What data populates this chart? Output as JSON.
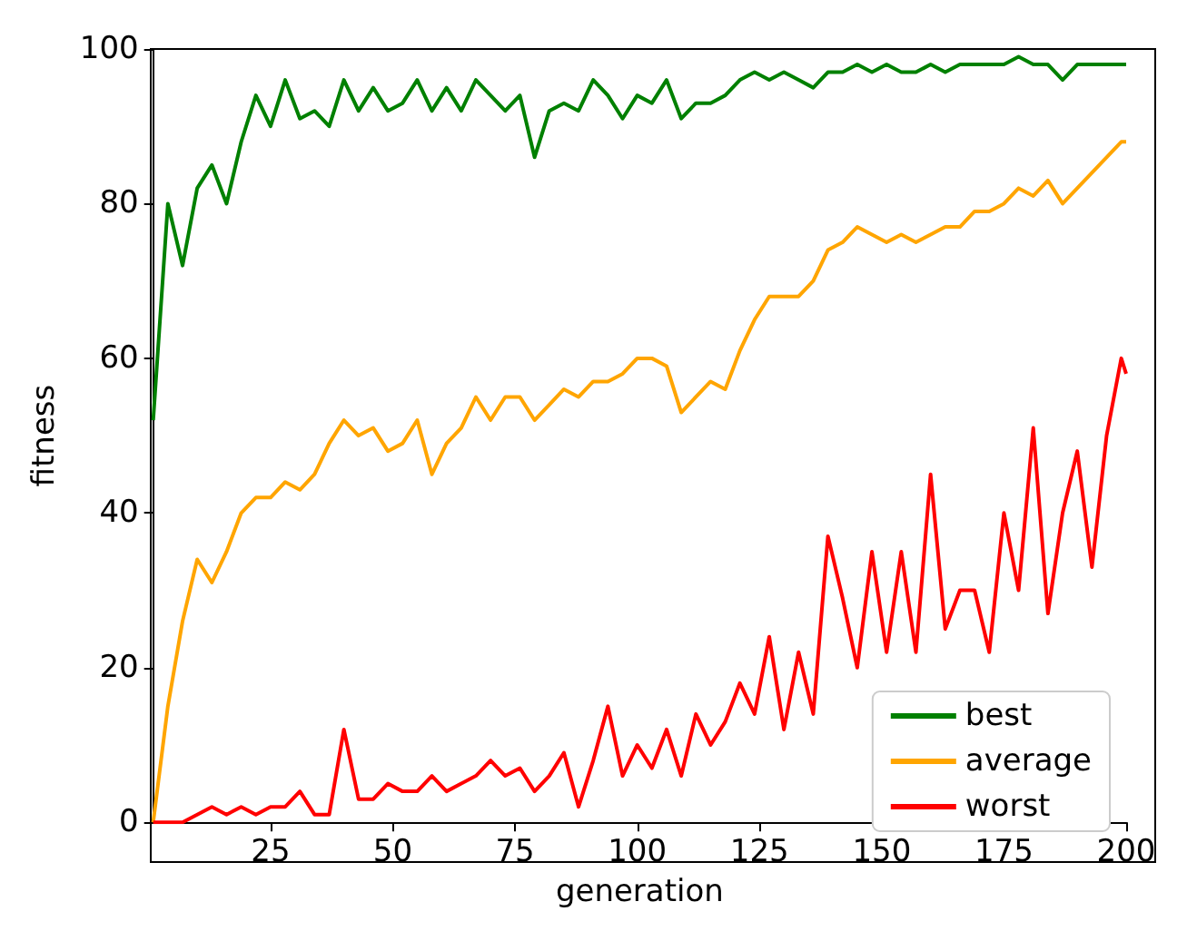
{
  "chart_data": {
    "type": "line",
    "xlabel": "generation",
    "ylabel": "fitness",
    "x": [
      1,
      4,
      7,
      10,
      13,
      16,
      19,
      22,
      25,
      28,
      31,
      34,
      37,
      40,
      43,
      46,
      49,
      52,
      55,
      58,
      61,
      64,
      67,
      70,
      73,
      76,
      79,
      82,
      85,
      88,
      91,
      94,
      97,
      100,
      103,
      106,
      109,
      112,
      115,
      118,
      121,
      124,
      127,
      130,
      133,
      136,
      139,
      142,
      145,
      148,
      151,
      154,
      157,
      160,
      163,
      166,
      169,
      172,
      175,
      178,
      181,
      184,
      187,
      190,
      193,
      196,
      199,
      200
    ],
    "series": [
      {
        "name": "best",
        "color": "#008000",
        "values": [
          52,
          80,
          72,
          82,
          85,
          80,
          88,
          94,
          90,
          96,
          91,
          92,
          90,
          96,
          92,
          95,
          92,
          93,
          96,
          92,
          95,
          92,
          96,
          94,
          92,
          94,
          86,
          92,
          93,
          92,
          96,
          94,
          91,
          94,
          93,
          96,
          91,
          93,
          93,
          94,
          96,
          97,
          96,
          97,
          96,
          95,
          97,
          97,
          98,
          97,
          98,
          97,
          97,
          98,
          97,
          98,
          98,
          98,
          98,
          99,
          98,
          98,
          96,
          98,
          98,
          98,
          98,
          98
        ]
      },
      {
        "name": "average",
        "color": "#ffa500",
        "values": [
          0,
          15,
          26,
          34,
          31,
          35,
          40,
          42,
          42,
          44,
          43,
          45,
          49,
          52,
          50,
          51,
          48,
          49,
          52,
          45,
          49,
          51,
          55,
          52,
          55,
          55,
          52,
          54,
          56,
          55,
          57,
          57,
          58,
          60,
          60,
          59,
          53,
          55,
          57,
          56,
          61,
          65,
          68,
          68,
          68,
          70,
          74,
          75,
          77,
          76,
          75,
          76,
          75,
          76,
          77,
          77,
          79,
          79,
          80,
          82,
          81,
          83,
          80,
          82,
          84,
          86,
          88,
          88
        ]
      },
      {
        "name": "worst",
        "color": "#ff0000",
        "values": [
          0,
          0,
          0,
          1,
          2,
          1,
          2,
          1,
          2,
          2,
          4,
          1,
          1,
          12,
          3,
          3,
          5,
          4,
          4,
          6,
          4,
          5,
          6,
          8,
          6,
          7,
          4,
          6,
          9,
          2,
          8,
          15,
          6,
          10,
          7,
          12,
          6,
          14,
          10,
          13,
          18,
          14,
          24,
          12,
          22,
          14,
          37,
          29,
          20,
          35,
          22,
          35,
          22,
          45,
          25,
          30,
          30,
          22,
          40,
          30,
          51,
          27,
          40,
          48,
          33,
          50,
          60,
          58
        ]
      }
    ],
    "xlim": [
      1,
      200
    ],
    "xticks": [
      25,
      50,
      75,
      100,
      125,
      150,
      175,
      200
    ],
    "ylim": [
      0,
      100
    ],
    "yticks": [
      0,
      20,
      40,
      60,
      80,
      100
    ],
    "legend": "bottom right",
    "grid": false,
    "marker": "none",
    "line_style": "solid"
  }
}
